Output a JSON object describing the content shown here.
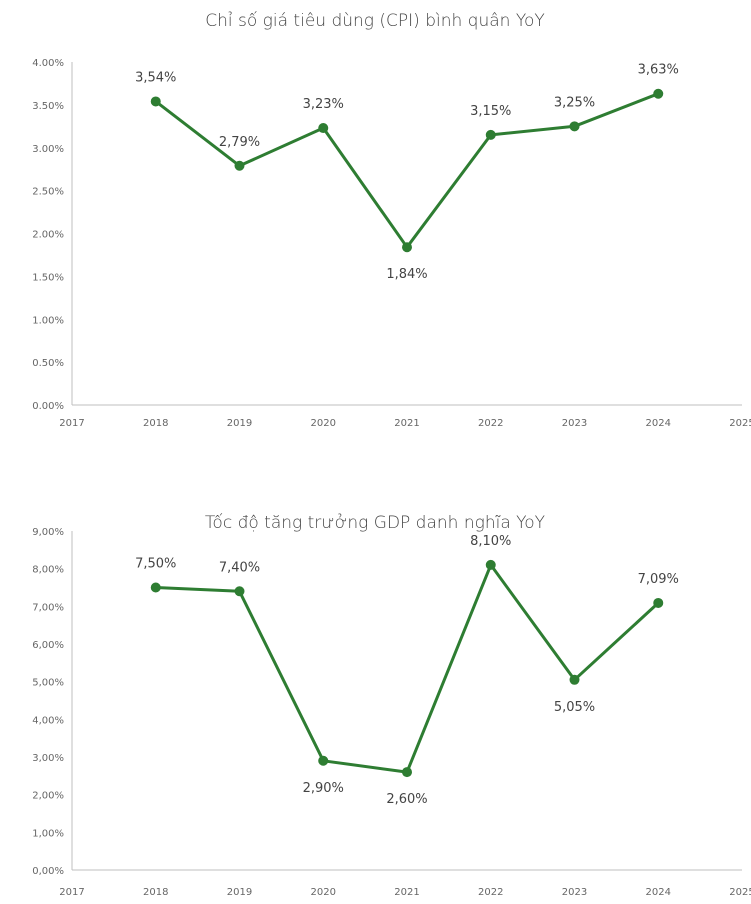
{
  "colors": {
    "series": "#2e7d32",
    "axis": "#bfbfbf",
    "text": "#444444"
  },
  "chart_data": [
    {
      "type": "line",
      "title": "Chỉ số giá tiêu dùng (CPI) bình quân YoY",
      "x_ticks": [
        "2017",
        "2018",
        "2019",
        "2020",
        "2021",
        "2022",
        "2023",
        "2024",
        "2025"
      ],
      "xlim": [
        2017,
        2025
      ],
      "y_ticks": [
        "0.00%",
        "0.50%",
        "1.00%",
        "1.50%",
        "2.00%",
        "2.50%",
        "3.00%",
        "3.50%",
        "4.00%"
      ],
      "ylim": [
        0,
        4
      ],
      "grid": false,
      "x": [
        2018,
        2019,
        2020,
        2021,
        2022,
        2023,
        2024
      ],
      "values": [
        3.54,
        2.79,
        3.23,
        1.84,
        3.15,
        3.25,
        3.63
      ],
      "labels": [
        "3,54%",
        "2,79%",
        "3,23%",
        "1,84%",
        "3,15%",
        "3,25%",
        "3,63%"
      ],
      "label_pos": [
        "above",
        "above",
        "above",
        "below",
        "above",
        "above",
        "above"
      ]
    },
    {
      "type": "line",
      "title": "Tốc độ tăng trưởng GDP danh nghĩa YoY",
      "x_ticks": [
        "2017",
        "2018",
        "2019",
        "2020",
        "2021",
        "2022",
        "2023",
        "2024",
        "2025"
      ],
      "xlim": [
        2017,
        2025
      ],
      "y_ticks": [
        "0,00%",
        "1,00%",
        "2,00%",
        "3,00%",
        "4,00%",
        "5,00%",
        "6,00%",
        "7,00%",
        "8,00%",
        "9,00%"
      ],
      "ylim": [
        0,
        9
      ],
      "grid": false,
      "x": [
        2018,
        2019,
        2020,
        2021,
        2022,
        2023,
        2024
      ],
      "values": [
        7.5,
        7.4,
        2.9,
        2.6,
        8.1,
        5.05,
        7.09
      ],
      "labels": [
        "7,50%",
        "7,40%",
        "2,90%",
        "2,60%",
        "8,10%",
        "5,05%",
        "7,09%"
      ],
      "label_pos": [
        "above",
        "above",
        "below",
        "below",
        "above",
        "below",
        "above"
      ]
    }
  ]
}
